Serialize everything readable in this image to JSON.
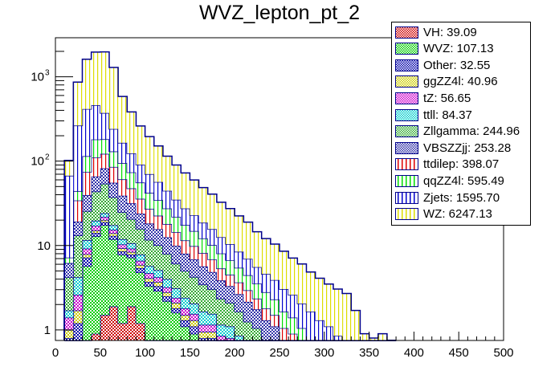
{
  "chart_data": {
    "type": "bar",
    "subtype": "stacked-histogram",
    "title": "WVZ_lepton_pt_2",
    "xlabel": "",
    "ylabel": "",
    "xlim": [
      0,
      500
    ],
    "ylim": [
      0.75,
      2900
    ],
    "yscale": "log",
    "bin_width": 10,
    "x_ticks": [
      0,
      50,
      100,
      150,
      200,
      250,
      300,
      350,
      400,
      450,
      500
    ],
    "y_ticks": [
      {
        "value": 1,
        "label": "1"
      },
      {
        "value": 10,
        "label": "10"
      },
      {
        "value": 100,
        "label": "10",
        "exp": "2"
      },
      {
        "value": 1000,
        "label": "10",
        "exp": "3"
      }
    ],
    "legend_position": "top-right",
    "bin_edges_start": 10,
    "series": [
      {
        "name": "VH",
        "label": "VH: 39.09",
        "color": "#cc0000",
        "fill": "#d96565",
        "pattern": "check",
        "values": [
          0,
          0,
          0,
          0.9,
          1.5,
          1.9,
          1.2,
          1.9,
          1.2,
          0.7,
          0.7,
          0,
          0.1,
          0,
          0,
          0,
          0,
          0,
          0,
          0,
          0,
          0,
          0,
          0,
          0,
          0,
          0,
          0,
          0,
          0,
          0,
          0,
          0,
          0,
          0,
          0,
          0
        ]
      },
      {
        "name": "WVZ",
        "label": "WVZ: 107.13",
        "color": "#00cc00",
        "fill": "#5fe05f",
        "pattern": "check",
        "values": [
          0,
          0,
          5.7,
          12,
          16,
          10,
          6.6,
          5.3,
          3.6,
          2.6,
          2.2,
          2.2,
          1.5,
          1.1,
          0.9,
          0.7,
          0.7,
          0.5,
          0.5,
          0.35,
          0.3,
          0.3,
          0.2,
          0.2,
          0.15,
          0.15,
          0.1,
          0,
          0,
          0,
          0,
          0,
          0,
          0,
          0,
          0,
          0
        ]
      },
      {
        "name": "Other",
        "label": "Other: 32.55",
        "color": "#0000aa",
        "fill": "#5a5ad0",
        "pattern": "check",
        "values": [
          0.8,
          1.2,
          1.5,
          1.2,
          1.4,
          1.1,
          0.7,
          0.6,
          0.6,
          0.4,
          0.4,
          0.3,
          0.2,
          0.2,
          0.2,
          0.1,
          0.1,
          0.1,
          0.1,
          0.05,
          0.05,
          0,
          0,
          0,
          0,
          0,
          0,
          0,
          0,
          0,
          0,
          0,
          0,
          0,
          0,
          0,
          0
        ]
      },
      {
        "name": "ggZZ4l",
        "label": "ggZZ4l: 40.96",
        "color": "#cccc00",
        "fill": "#ffff66",
        "pattern": "check",
        "values": [
          0.2,
          0.5,
          0.7,
          1.0,
          1.2,
          1.0,
          0.8,
          0.6,
          0.5,
          0.4,
          0.4,
          0.3,
          0.3,
          0.2,
          0.2,
          0.15,
          0.15,
          0.1,
          0.1,
          0.1,
          0.05,
          0.05,
          0,
          0,
          0,
          0,
          0,
          0,
          0,
          0,
          0,
          0,
          0,
          0,
          0,
          0,
          0
        ]
      },
      {
        "name": "tZ",
        "label": "tZ: 56.65",
        "color": "#cc00cc",
        "fill": "#e066e0",
        "pattern": "check",
        "values": [
          0.4,
          0.9,
          1.3,
          2.0,
          1.8,
          1.4,
          1.0,
          0.8,
          0.7,
          0.6,
          0.5,
          0.4,
          0.3,
          0.3,
          0.25,
          0.2,
          0.2,
          0.15,
          0.1,
          0.1,
          0.05,
          0.05,
          0,
          0,
          0,
          0,
          0,
          0,
          0,
          0,
          0,
          0,
          0,
          0,
          0,
          0,
          0
        ]
      },
      {
        "name": "ttll",
        "label": "ttll: 84.37",
        "color": "#00cccc",
        "fill": "#66e6e6",
        "pattern": "check",
        "values": [
          0.3,
          1.6,
          2.4,
          2.6,
          2.2,
          2.0,
          1.6,
          1.4,
          1.2,
          1.0,
          0.9,
          0.8,
          0.7,
          0.6,
          0.5,
          0.5,
          0.4,
          0.3,
          0.3,
          0.25,
          0.2,
          0.15,
          0.1,
          0.1,
          0,
          0,
          0,
          0,
          0,
          0,
          0,
          0,
          0,
          0,
          0,
          0,
          0
        ]
      },
      {
        "name": "Zllgamma",
        "label": "Zllgamma: 244.96",
        "color": "#33aa33",
        "fill": "#a4d8a4",
        "pattern": "check",
        "values": [
          2.5,
          9.0,
          14,
          24,
          30,
          20,
          13,
          10,
          8,
          6,
          5,
          4,
          3,
          2.6,
          2.2,
          1.8,
          1.5,
          1.2,
          1.0,
          0.8,
          0.6,
          0.5,
          0.4,
          0.3,
          0.2,
          0.2,
          0.1,
          0.1,
          0,
          0,
          0,
          0,
          0,
          0,
          0,
          0,
          0
        ]
      },
      {
        "name": "VBSZZjj",
        "label": "VBSZZjj: 253.28",
        "color": "#3333aa",
        "fill": "#9c9cd0",
        "pattern": "check",
        "values": [
          2.0,
          6.0,
          14,
          22,
          28,
          18,
          14,
          11,
          8,
          6.5,
          5.5,
          4.5,
          3.8,
          3.0,
          2.6,
          2.2,
          1.8,
          1.5,
          1.2,
          1.0,
          0.9,
          0.7,
          0.6,
          0.5,
          0.4,
          0.3,
          0.25,
          0.2,
          0.15,
          0.1,
          0.1,
          0,
          0,
          0,
          0,
          0,
          0
        ]
      },
      {
        "name": "ttdilep",
        "label": "ttdilep: 398.07",
        "color": "#dd0000",
        "fill": "#ffffff",
        "pattern": "vline",
        "values": [
          0.0,
          15,
          35,
          45,
          40,
          30,
          22,
          16,
          12,
          9,
          7,
          5.5,
          4.5,
          3.5,
          3.0,
          2.5,
          2.0,
          1.5,
          1.2,
          1.0,
          0.8,
          0.6,
          0.5,
          0.4,
          0.3,
          0.25,
          0.2,
          0.15,
          0.1,
          0.1,
          0,
          0,
          0,
          0,
          0,
          0,
          0
        ]
      },
      {
        "name": "qqZZ4l",
        "label": "qqZZ4l: 595.49",
        "color": "#00dd00",
        "fill": "#ffffff",
        "pattern": "vline",
        "values": [
          1.0,
          10,
          40,
          70,
          60,
          45,
          34,
          26,
          20,
          15,
          12,
          9.5,
          7.5,
          6.0,
          5.0,
          4.0,
          3.3,
          2.7,
          2.2,
          1.8,
          1.5,
          1.2,
          1.0,
          0.8,
          0.6,
          0.5,
          0.4,
          0.3,
          0.25,
          0.2,
          0.15,
          0.1,
          0,
          0,
          0,
          0,
          0
        ]
      },
      {
        "name": "Zjets",
        "label": "Zjets: 1595.70",
        "color": "#0000cc",
        "fill": "#ffffff",
        "pattern": "vline",
        "values": [
          60,
          220,
          300,
          280,
          190,
          110,
          70,
          50,
          35,
          28,
          22,
          17,
          13,
          10,
          8,
          6.5,
          5.5,
          4.5,
          3.7,
          3.0,
          2.5,
          2.0,
          1.8,
          1.6,
          1.4,
          1.2,
          1.0,
          0.9,
          0.8,
          0.7,
          0.6,
          0.5,
          0.4,
          0,
          0,
          0,
          0
        ]
      },
      {
        "name": "WZ",
        "label": "WZ: 6247.13",
        "color": "#dddd00",
        "fill": "#ffffff",
        "pattern": "vline",
        "values": [
          35,
          600,
          1200,
          1500,
          1600,
          1050,
          420,
          260,
          170,
          125,
          95,
          70,
          55,
          45,
          37,
          30,
          25,
          20,
          17,
          14,
          12,
          9,
          7.5,
          6.5,
          5.5,
          4.5,
          4.0,
          3.2,
          2.8,
          2.4,
          2.2,
          2.1,
          1.3,
          0.9,
          0.8,
          0.9,
          0.1
        ]
      }
    ]
  }
}
